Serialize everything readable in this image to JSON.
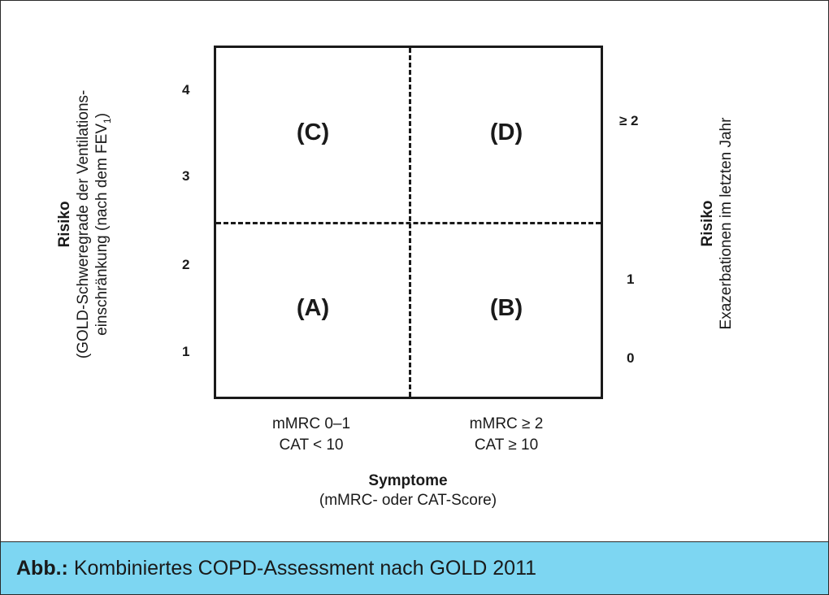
{
  "quadrants": {
    "c": "(C)",
    "d": "(D)",
    "a": "(A)",
    "b": "(B)"
  },
  "left_ticks": [
    "4",
    "3",
    "2",
    "1"
  ],
  "right_ticks": [
    "≥ 2",
    "1",
    "0"
  ],
  "x_labels": {
    "left_line1": "mMRC 0–1",
    "left_line2": "CAT < 10",
    "right_line1": "mMRC ≥ 2",
    "right_line2": "CAT ≥ 10"
  },
  "x_title": {
    "title": "Symptome",
    "subtitle": "(mMRC- oder CAT-Score)"
  },
  "left_axis": {
    "title": "Risiko",
    "line1": "(GOLD-Schweregrade der Ventilations-",
    "line2_prefix": "einschränkung (nach dem FEV",
    "line2_sub": "1",
    "line2_suffix": ")"
  },
  "right_axis": {
    "title": "Risiko",
    "line1": "Exazerbationen im letzten Jahr"
  },
  "caption": {
    "label": "Abb.:",
    "text": " Kombiniertes COPD-Assessment nach GOLD 2011",
    "background": "#7dd6f2"
  }
}
